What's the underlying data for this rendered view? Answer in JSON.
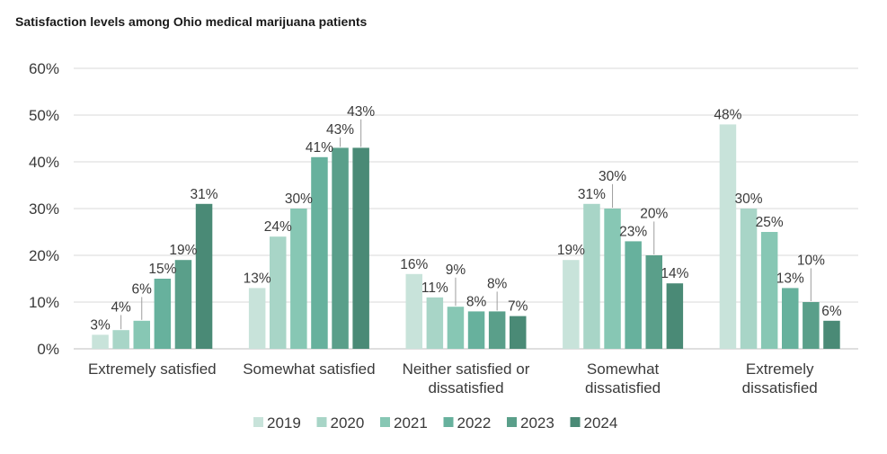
{
  "chart_data": {
    "type": "bar",
    "title": "Satisfaction levels among Ohio medical marijuana patients",
    "categories": [
      [
        "Extremely satisfied"
      ],
      [
        "Somewhat satisfied"
      ],
      [
        "Neither satisfied or",
        "dissatisfied"
      ],
      [
        "Somewhat",
        "dissatisfied"
      ],
      [
        "Extremely",
        "dissatisfied"
      ]
    ],
    "series": [
      {
        "name": "2019",
        "color": "#c8e3da",
        "values": [
          3,
          13,
          16,
          19,
          48
        ]
      },
      {
        "name": "2020",
        "color": "#a8d5c7",
        "values": [
          4,
          24,
          11,
          31,
          30
        ]
      },
      {
        "name": "2021",
        "color": "#87c7b4",
        "values": [
          6,
          30,
          9,
          30,
          25
        ]
      },
      {
        "name": "2022",
        "color": "#67b19d",
        "values": [
          15,
          41,
          8,
          23,
          13
        ]
      },
      {
        "name": "2023",
        "color": "#5a9f8a",
        "values": [
          19,
          43,
          8,
          20,
          10
        ]
      },
      {
        "name": "2024",
        "color": "#4a8a76",
        "values": [
          31,
          43,
          7,
          14,
          6
        ]
      }
    ],
    "value_suffix": "%",
    "ylim": [
      0,
      60
    ],
    "yticks": [
      0,
      10,
      20,
      30,
      40,
      50,
      60
    ],
    "xlabel": "",
    "ylabel": "",
    "grid": true,
    "legend_position": "bottom"
  }
}
